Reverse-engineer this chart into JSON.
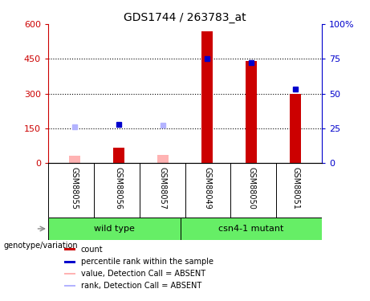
{
  "title": "GDS1744 / 263783_at",
  "samples": [
    "GSM88055",
    "GSM88056",
    "GSM88057",
    "GSM88049",
    "GSM88050",
    "GSM88051"
  ],
  "red_bars": [
    null,
    65,
    null,
    570,
    440,
    300
  ],
  "pink_bars": [
    30,
    65,
    35,
    null,
    null,
    null
  ],
  "blue_squares_pct": [
    null,
    27.5,
    null,
    75,
    72,
    53
  ],
  "lightblue_squares_pct": [
    26,
    null,
    27,
    null,
    null,
    null
  ],
  "left_ylim": [
    0,
    600
  ],
  "right_ylim": [
    0,
    100
  ],
  "left_yticks": [
    0,
    150,
    300,
    450,
    600
  ],
  "right_yticks": [
    0,
    25,
    50,
    75,
    100
  ],
  "left_yticklabels": [
    "0",
    "150",
    "300",
    "450",
    "600"
  ],
  "right_yticklabels": [
    "0",
    "25",
    "50",
    "75",
    "100%"
  ],
  "left_axis_color": "#cc0000",
  "right_axis_color": "#0000cc",
  "bar_width": 0.25,
  "grid_levels": [
    150,
    300,
    450
  ],
  "wt_group": "wild type",
  "mut_group": "csn4-1 mutant",
  "group_color": "#66ee66",
  "sample_bg_color": "#c8c8c8",
  "legend_labels": [
    "count",
    "percentile rank within the sample",
    "value, Detection Call = ABSENT",
    "rank, Detection Call = ABSENT"
  ],
  "legend_colors": [
    "#cc0000",
    "#0000cc",
    "#ffb3b3",
    "#b3b3ff"
  ],
  "group_label": "genotype/variation"
}
